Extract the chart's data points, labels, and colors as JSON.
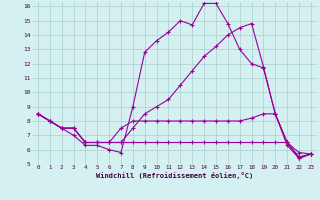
{
  "xlabel": "Windchill (Refroidissement éolien,°C)",
  "x": [
    0,
    1,
    2,
    3,
    4,
    5,
    6,
    7,
    8,
    9,
    10,
    11,
    12,
    13,
    14,
    15,
    16,
    17,
    18,
    19,
    20,
    21,
    22,
    23
  ],
  "line1": [
    8.5,
    8.0,
    7.5,
    7.0,
    6.3,
    6.3,
    6.0,
    5.8,
    9.0,
    12.8,
    13.6,
    14.2,
    15.0,
    14.7,
    16.2,
    16.2,
    14.8,
    13.0,
    12.0,
    11.7,
    8.5,
    6.3,
    5.4,
    5.7
  ],
  "line2": [
    8.5,
    8.0,
    7.5,
    7.5,
    6.5,
    6.5,
    6.5,
    6.5,
    7.5,
    8.5,
    9.0,
    9.5,
    10.5,
    11.5,
    12.5,
    13.2,
    14.0,
    14.5,
    14.8,
    11.8,
    8.5,
    6.5,
    5.5,
    5.7
  ],
  "line3": [
    8.5,
    8.0,
    7.5,
    7.5,
    6.5,
    6.5,
    6.5,
    7.5,
    8.0,
    8.0,
    8.0,
    8.0,
    8.0,
    8.0,
    8.0,
    8.0,
    8.0,
    8.0,
    8.2,
    8.5,
    8.5,
    6.5,
    5.8,
    5.7
  ],
  "line4": [
    8.5,
    8.0,
    7.5,
    7.5,
    6.5,
    6.5,
    6.5,
    6.5,
    6.5,
    6.5,
    6.5,
    6.5,
    6.5,
    6.5,
    6.5,
    6.5,
    6.5,
    6.5,
    6.5,
    6.5,
    6.5,
    6.5,
    5.4,
    5.7
  ],
  "line_color": "#990099",
  "bg_color": "#d4f0f0",
  "grid_color": "#aacece",
  "ylim": [
    5,
    16
  ],
  "xlim": [
    -0.5,
    23.5
  ],
  "yticks": [
    5,
    6,
    7,
    8,
    9,
    10,
    11,
    12,
    13,
    14,
    15,
    16
  ],
  "xticks": [
    0,
    1,
    2,
    3,
    4,
    5,
    6,
    7,
    8,
    9,
    10,
    11,
    12,
    13,
    14,
    15,
    16,
    17,
    18,
    19,
    20,
    21,
    22,
    23
  ]
}
